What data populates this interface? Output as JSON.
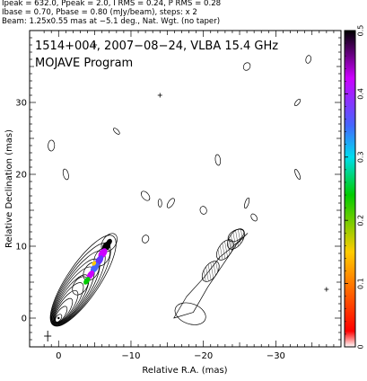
{
  "header": {
    "line1": "Ipeak = 632.0, Ppeak = 2.0, I RMS = 0.24, P RMS = 0.28",
    "line2": "Ibase = 0.70, Pbase = 0.80 (mJy/beam), steps: x 2",
    "line3": "Beam: 1.25x0.55 mas at −5.1 deg., Nat. Wgt. (no taper)"
  },
  "chart_data": {
    "type": "contour-map",
    "title": "1514+004, 2007−08−24, VLBA 15.4 GHz",
    "subtitle": "MOJAVE Program",
    "xlabel": "Relative R.A. (mas)",
    "ylabel": "Relative Declination (mas)",
    "xlim": [
      4,
      -39
    ],
    "ylim": [
      -4,
      40
    ],
    "x_ticks": [
      0,
      -10,
      -20,
      -30
    ],
    "x_tick_labels": [
      "0",
      "−10",
      "−20",
      "−30"
    ],
    "y_ticks": [
      0,
      10,
      20,
      30
    ],
    "y_tick_labels": [
      "0",
      "10",
      "20",
      "30"
    ],
    "colorbar": {
      "range": [
        0,
        0.5
      ],
      "ticks": [
        0,
        0.1,
        0.2,
        0.3,
        0.4,
        0.5
      ],
      "tick_labels": [
        "0",
        "0.1",
        "0.2",
        "0.3",
        "0.4",
        "0.5"
      ],
      "colors": [
        "#ffffff",
        "#ff0000",
        "#ffcc00",
        "#00cc00",
        "#00ddee",
        "#4466ff",
        "#cc00ff",
        "#000000"
      ]
    },
    "left_panel": {
      "core": [
        0,
        0
      ],
      "jet_ridge": [
        [
          0,
          0
        ],
        [
          -1.5,
          2.5
        ],
        [
          -3,
          4.5
        ],
        [
          -4.5,
          6.5
        ],
        [
          -6,
          8.5
        ],
        [
          -7,
          10.5
        ]
      ],
      "contour_levels": 11
    },
    "right_panel": {
      "offset_ra": -17,
      "jet_ridge": [
        [
          -17,
          0
        ],
        [
          -19,
          3.5
        ],
        [
          -21,
          6.5
        ],
        [
          -23,
          9.5
        ],
        [
          -24.5,
          11
        ]
      ]
    },
    "noise_islands": [
      [
        -8,
        26
      ],
      [
        -22,
        22
      ],
      [
        -26,
        35
      ],
      [
        -33,
        20
      ],
      [
        -34.5,
        36
      ],
      [
        -12,
        17
      ],
      [
        -14,
        16
      ],
      [
        -15.5,
        16
      ],
      [
        -20,
        15
      ],
      [
        -26,
        16
      ],
      [
        -27,
        14
      ],
      [
        1,
        24
      ],
      [
        -33,
        30
      ],
      [
        -1,
        20
      ],
      [
        -12,
        11
      ]
    ],
    "markers": [
      [
        -5,
        38
      ],
      [
        -14,
        31
      ],
      [
        -37,
        4
      ]
    ],
    "beam": {
      "position": [
        1.5,
        -2.5
      ]
    }
  }
}
